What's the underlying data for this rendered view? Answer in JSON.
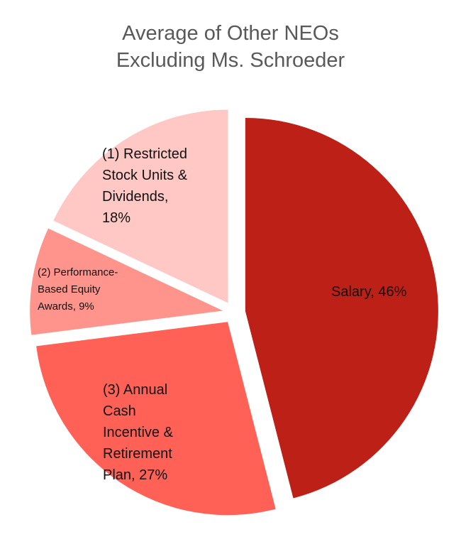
{
  "chart_data": {
    "type": "pie",
    "title": "Average of Other NEOs Excluding Ms. Schroeder",
    "title_lines": [
      "Average of Other NEOs",
      "Excluding Ms. Schroeder"
    ],
    "exploded": true,
    "categories": [
      "Salary",
      "(3) Annual Cash Incentive & Retirement Plan",
      "(2) Performance-Based Equity Awards",
      "(1) Restricted Stock Units & Dividends"
    ],
    "values": [
      46,
      27,
      9,
      18
    ],
    "unit": "%",
    "colors": [
      "#bd2017",
      "#ff6157",
      "#ff948d",
      "#ffc8c5"
    ],
    "data_labels": [
      {
        "lines": [
          "Salary, 46%"
        ]
      },
      {
        "lines": [
          "(3) Annual",
          "Cash",
          "Incentive &",
          "Retirement",
          "Plan, 27%"
        ]
      },
      {
        "lines": [
          "(2) Performance-",
          "Based Equity",
          "Awards, 9%"
        ]
      },
      {
        "lines": [
          "(1) Restricted",
          "Stock Units &",
          "Dividends,",
          "18%"
        ]
      }
    ],
    "legend": "none"
  }
}
